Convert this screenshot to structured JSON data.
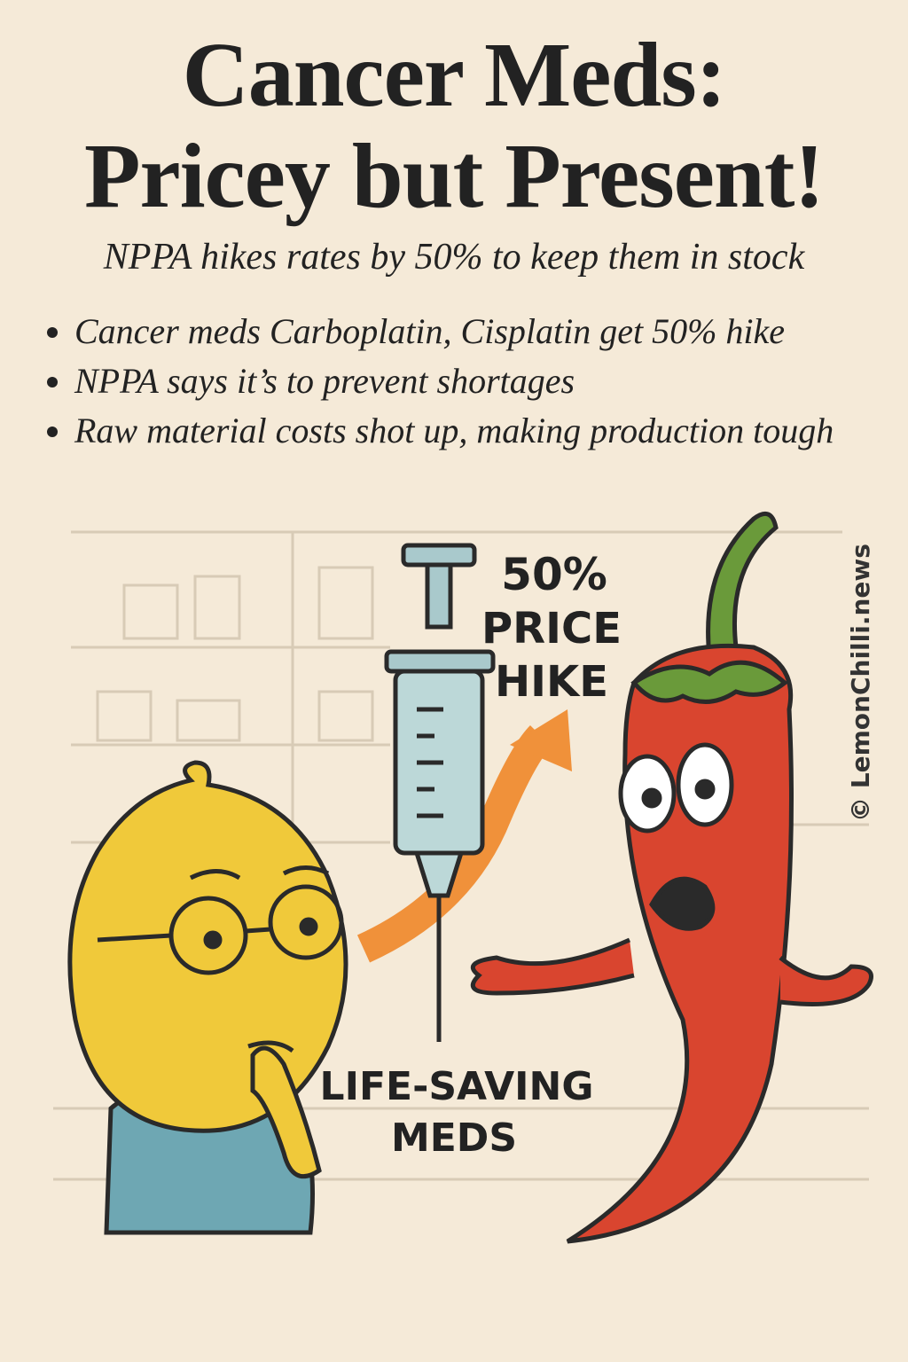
{
  "header": {
    "title_lines": [
      "Cancer Meds:",
      "Pricey but Present!"
    ],
    "subtitle": "NPPA hikes rates by 50% to keep them in stock"
  },
  "bullets": [
    "Cancer meds Carboplatin, Cisplatin get 50% hike",
    "NPPA says it’s to prevent shortages",
    "Raw material costs shot up, making production tough"
  ],
  "illustration": {
    "hike_label_lines": [
      "50%",
      "PRICE",
      "HIKE"
    ],
    "meds_label_lines": [
      "LIFE-SAVING",
      "MEDS"
    ],
    "watermark": "© LemonChilli.news"
  }
}
